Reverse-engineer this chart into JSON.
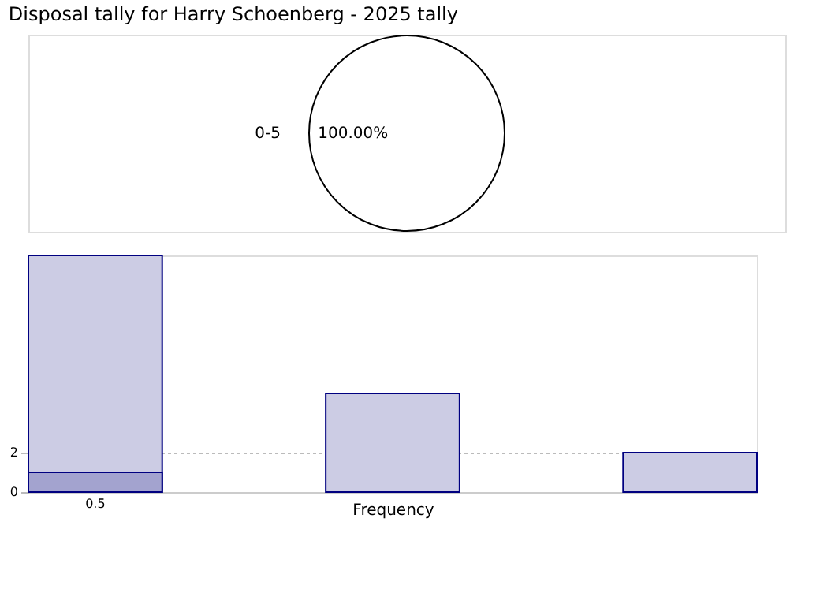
{
  "chart_data": [
    {
      "type": "pie",
      "title": "Disposal tally for Harry Schoenberg - 2025 tally",
      "categories": [
        "0-5"
      ],
      "values": [
        100
      ],
      "colors": [
        "#ffffff"
      ],
      "value_labels": [
        "100.00%"
      ]
    },
    {
      "type": "bar",
      "categories": [
        null,
        null,
        null
      ],
      "xlabel": "Frequency",
      "series": [
        {
          "color": "#ccccE4",
          "values": [
            12,
            5,
            2
          ]
        },
        {
          "color": "#a3a3cf",
          "values": [
            1,
            null,
            null
          ]
        }
      ],
      "ylim": [
        0,
        12
      ],
      "yticks": [
        0,
        2
      ],
      "grid": "y",
      "annotations": [
        "0.5"
      ]
    }
  ]
}
